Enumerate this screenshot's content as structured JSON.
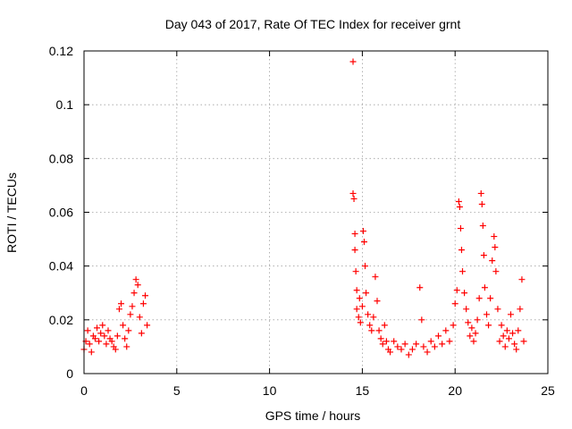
{
  "chart_data": {
    "type": "scatter",
    "title": "Day 043 of 2017, Rate Of TEC Index for receiver grnt",
    "xlabel": "GPS time / hours",
    "ylabel": "ROTI / TECUs",
    "xlim": [
      0,
      25
    ],
    "ylim": [
      0,
      0.12
    ],
    "xticks": [
      0,
      5,
      10,
      15,
      20,
      25
    ],
    "xtick_labels": [
      "0",
      "5",
      "10",
      "15",
      "20",
      "25"
    ],
    "yticks": [
      0,
      0.02,
      0.04,
      0.06,
      0.08,
      0.1,
      0.12
    ],
    "ytick_labels": [
      "0",
      "0.02",
      "0.04",
      "0.06",
      "0.08",
      "0.1",
      "0.12"
    ],
    "grid": true,
    "marker": "plus",
    "color": "#ff0000",
    "series": [
      {
        "points": [
          [
            0.0,
            0.009
          ],
          [
            0.1,
            0.012
          ],
          [
            0.2,
            0.016
          ],
          [
            0.3,
            0.011
          ],
          [
            0.4,
            0.008
          ],
          [
            0.5,
            0.014
          ],
          [
            0.6,
            0.013
          ],
          [
            0.7,
            0.017
          ],
          [
            0.8,
            0.012
          ],
          [
            0.9,
            0.015
          ],
          [
            1.0,
            0.018
          ],
          [
            1.1,
            0.014
          ],
          [
            1.2,
            0.011
          ],
          [
            1.3,
            0.016
          ],
          [
            1.4,
            0.013
          ],
          [
            1.5,
            0.012
          ],
          [
            1.6,
            0.01
          ],
          [
            1.7,
            0.009
          ],
          [
            1.8,
            0.014
          ],
          [
            1.9,
            0.024
          ],
          [
            2.0,
            0.026
          ],
          [
            2.1,
            0.018
          ],
          [
            2.2,
            0.013
          ],
          [
            2.3,
            0.01
          ],
          [
            2.4,
            0.016
          ],
          [
            2.5,
            0.022
          ],
          [
            2.6,
            0.025
          ],
          [
            2.7,
            0.03
          ],
          [
            2.8,
            0.035
          ],
          [
            2.9,
            0.033
          ],
          [
            3.0,
            0.021
          ],
          [
            3.1,
            0.015
          ],
          [
            3.2,
            0.026
          ],
          [
            3.3,
            0.029
          ],
          [
            3.4,
            0.018
          ],
          [
            14.5,
            0.116
          ],
          [
            14.5,
            0.067
          ],
          [
            14.55,
            0.065
          ],
          [
            14.6,
            0.052
          ],
          [
            14.6,
            0.046
          ],
          [
            14.65,
            0.038
          ],
          [
            14.7,
            0.031
          ],
          [
            14.7,
            0.024
          ],
          [
            14.8,
            0.021
          ],
          [
            14.85,
            0.028
          ],
          [
            14.9,
            0.019
          ],
          [
            15.0,
            0.025
          ],
          [
            15.05,
            0.053
          ],
          [
            15.1,
            0.049
          ],
          [
            15.15,
            0.04
          ],
          [
            15.2,
            0.03
          ],
          [
            15.3,
            0.022
          ],
          [
            15.4,
            0.018
          ],
          [
            15.5,
            0.016
          ],
          [
            15.6,
            0.021
          ],
          [
            15.7,
            0.036
          ],
          [
            15.8,
            0.027
          ],
          [
            15.9,
            0.016
          ],
          [
            16.0,
            0.013
          ],
          [
            16.1,
            0.011
          ],
          [
            16.2,
            0.018
          ],
          [
            16.3,
            0.012
          ],
          [
            16.4,
            0.009
          ],
          [
            16.5,
            0.008
          ],
          [
            16.7,
            0.012
          ],
          [
            16.9,
            0.01
          ],
          [
            17.1,
            0.009
          ],
          [
            17.3,
            0.011
          ],
          [
            17.5,
            0.007
          ],
          [
            17.7,
            0.009
          ],
          [
            17.9,
            0.011
          ],
          [
            18.1,
            0.032
          ],
          [
            18.2,
            0.02
          ],
          [
            18.3,
            0.01
          ],
          [
            18.5,
            0.008
          ],
          [
            18.7,
            0.012
          ],
          [
            18.9,
            0.01
          ],
          [
            19.1,
            0.014
          ],
          [
            19.3,
            0.011
          ],
          [
            19.5,
            0.016
          ],
          [
            19.7,
            0.012
          ],
          [
            19.9,
            0.018
          ],
          [
            20.0,
            0.026
          ],
          [
            20.1,
            0.031
          ],
          [
            20.2,
            0.064
          ],
          [
            20.25,
            0.062
          ],
          [
            20.3,
            0.054
          ],
          [
            20.35,
            0.046
          ],
          [
            20.4,
            0.038
          ],
          [
            20.5,
            0.03
          ],
          [
            20.6,
            0.024
          ],
          [
            20.7,
            0.019
          ],
          [
            20.8,
            0.014
          ],
          [
            20.9,
            0.017
          ],
          [
            21.0,
            0.012
          ],
          [
            21.1,
            0.015
          ],
          [
            21.2,
            0.02
          ],
          [
            21.3,
            0.028
          ],
          [
            21.4,
            0.067
          ],
          [
            21.45,
            0.063
          ],
          [
            21.5,
            0.055
          ],
          [
            21.55,
            0.044
          ],
          [
            21.6,
            0.032
          ],
          [
            21.7,
            0.022
          ],
          [
            21.8,
            0.018
          ],
          [
            21.9,
            0.028
          ],
          [
            22.0,
            0.042
          ],
          [
            22.1,
            0.051
          ],
          [
            22.15,
            0.047
          ],
          [
            22.2,
            0.038
          ],
          [
            22.3,
            0.024
          ],
          [
            22.4,
            0.012
          ],
          [
            22.5,
            0.018
          ],
          [
            22.6,
            0.014
          ],
          [
            22.7,
            0.01
          ],
          [
            22.8,
            0.016
          ],
          [
            22.9,
            0.013
          ],
          [
            23.0,
            0.022
          ],
          [
            23.1,
            0.015
          ],
          [
            23.2,
            0.011
          ],
          [
            23.3,
            0.009
          ],
          [
            23.4,
            0.016
          ],
          [
            23.5,
            0.024
          ],
          [
            23.6,
            0.035
          ],
          [
            23.7,
            0.012
          ]
        ]
      }
    ]
  }
}
